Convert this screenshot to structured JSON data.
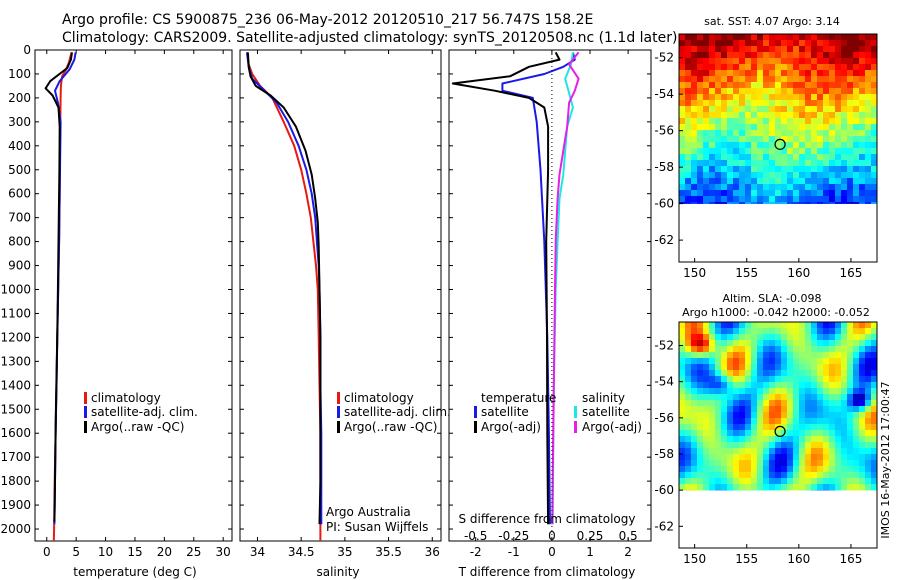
{
  "header": {
    "line1": "Argo profile: CS 5900875_236 06-May-2012 20120510_217 56.747S 158.2E",
    "line2": "Climatology: CARS2009. Satellite-adjusted climatology: synTS_20120508.nc (1.1d later)"
  },
  "colors": {
    "red": "#e8190f",
    "blue": "#1a1ae6",
    "black": "#000000",
    "cyan": "#1ee6e6",
    "magenta": "#e61ee6"
  },
  "depth_ticks": [
    "0",
    "100",
    "200",
    "300",
    "400",
    "500",
    "600",
    "700",
    "800",
    "900",
    "1000",
    "1100",
    "1200",
    "1300",
    "1400",
    "1500",
    "1600",
    "1700",
    "1800",
    "1900",
    "2000"
  ],
  "panel1": {
    "xlabel": "temperature (deg C)",
    "xticks": [
      "0",
      "5",
      "10",
      "15",
      "20",
      "25",
      "30"
    ],
    "legend": [
      "climatology",
      "satellite-adj. clim.",
      "Argo(..raw -QC)"
    ]
  },
  "panel2": {
    "xlabel": "salinity",
    "xticks": [
      "34",
      "34.5",
      "35",
      "35.5",
      "36"
    ],
    "legend": [
      "climatology",
      "satellite-adj. clim.",
      "Argo(..raw -QC)"
    ],
    "note1": "Argo Australia",
    "note2": "PI: Susan Wijffels"
  },
  "panel3": {
    "xlabel": "T difference from climatology",
    "toplabel": "S difference from climatology",
    "xticks_bottom": [
      "-2",
      "-1",
      "0",
      "1",
      "2"
    ],
    "xticks_top": [
      "-0.5",
      "-0.25",
      "0",
      "0.25",
      "0.5"
    ],
    "legend_left_title": "temperature",
    "legend_left": [
      "satellite",
      "Argo(-adj)"
    ],
    "legend_right_title": "salinity",
    "legend_right": [
      "satellite",
      "Argo(-adj)"
    ]
  },
  "map1": {
    "title": "sat. SST: 4.07 Argo: 3.14",
    "yticks": [
      "-52",
      "-54",
      "-56",
      "-58",
      "-60",
      "-62"
    ],
    "xticks": [
      "150",
      "155",
      "160",
      "165"
    ]
  },
  "map2": {
    "title1": "Altim. SLA: -0.098",
    "title2": "Argo h1000: -0.042 h2000: -0.052",
    "yticks": [
      "-52",
      "-54",
      "-56",
      "-58",
      "-60",
      "-62"
    ],
    "xticks": [
      "150",
      "155",
      "160",
      "165"
    ],
    "stamp": "IMOS 16-May-2012 17:00:47"
  },
  "chart_data": [
    {
      "type": "line",
      "title": "",
      "xlabel": "temperature (deg C)",
      "ylabel": "",
      "xlim": [
        -2,
        31.5
      ],
      "ylim": [
        2050,
        0
      ],
      "series": [
        {
          "name": "climatology",
          "color": "#e8190f",
          "points": [
            [
              4.2,
              10
            ],
            [
              3.8,
              50
            ],
            [
              3.3,
              80
            ],
            [
              2.6,
              110
            ],
            [
              2.4,
              150
            ],
            [
              2.35,
              200
            ],
            [
              2.3,
              300
            ],
            [
              2.25,
              400
            ],
            [
              2.2,
              600
            ],
            [
              2.1,
              800
            ],
            [
              1.95,
              1000
            ],
            [
              1.8,
              1200
            ],
            [
              1.65,
              1400
            ],
            [
              1.5,
              1600
            ],
            [
              1.35,
              1800
            ],
            [
              1.25,
              2000
            ],
            [
              1.2,
              2050
            ]
          ]
        },
        {
          "name": "satellite-adj. clim.",
          "color": "#1a1ae6",
          "points": [
            [
              4.9,
              10
            ],
            [
              4.7,
              40
            ],
            [
              3.9,
              80
            ],
            [
              2.2,
              130
            ],
            [
              1.4,
              170
            ],
            [
              1.9,
              220
            ],
            [
              2.35,
              300
            ],
            [
              2.3,
              400
            ],
            [
              2.2,
              600
            ],
            [
              2.1,
              800
            ],
            [
              1.95,
              1000
            ],
            [
              1.8,
              1200
            ],
            [
              1.65,
              1400
            ],
            [
              1.5,
              1600
            ],
            [
              1.4,
              1800
            ],
            [
              1.3,
              1980
            ]
          ]
        },
        {
          "name": "Argo(..raw -QC)",
          "color": "#000000",
          "points": [
            [
              4.3,
              10
            ],
            [
              4.1,
              40
            ],
            [
              3.5,
              75
            ],
            [
              0.6,
              130
            ],
            [
              -0.2,
              160
            ],
            [
              1.0,
              190
            ],
            [
              2.0,
              240
            ],
            [
              2.2,
              320
            ],
            [
              2.15,
              500
            ],
            [
              2.05,
              700
            ],
            [
              1.95,
              900
            ],
            [
              1.85,
              1100
            ],
            [
              1.7,
              1300
            ],
            [
              1.55,
              1500
            ],
            [
              1.45,
              1700
            ],
            [
              1.35,
              1900
            ],
            [
              1.3,
              1970
            ]
          ]
        }
      ]
    },
    {
      "type": "line",
      "title": "",
      "xlabel": "salinity",
      "ylabel": "",
      "xlim": [
        33.8,
        36.1
      ],
      "ylim": [
        2050,
        0
      ],
      "series": [
        {
          "name": "climatology",
          "color": "#e8190f",
          "points": [
            [
              33.88,
              10
            ],
            [
              33.9,
              60
            ],
            [
              33.94,
              100
            ],
            [
              34.03,
              150
            ],
            [
              34.17,
              200
            ],
            [
              34.3,
              300
            ],
            [
              34.42,
              400
            ],
            [
              34.5,
              500
            ],
            [
              34.56,
              600
            ],
            [
              34.61,
              700
            ],
            [
              34.64,
              800
            ],
            [
              34.67,
              900
            ],
            [
              34.69,
              1000
            ],
            [
              34.7,
              1200
            ],
            [
              34.71,
              1400
            ],
            [
              34.72,
              1600
            ],
            [
              34.72,
              1800
            ],
            [
              34.72,
              2050
            ]
          ]
        },
        {
          "name": "satellite-adj. clim.",
          "color": "#1a1ae6",
          "points": [
            [
              33.88,
              10
            ],
            [
              33.9,
              70
            ],
            [
              33.94,
              120
            ],
            [
              34.08,
              170
            ],
            [
              34.22,
              220
            ],
            [
              34.35,
              300
            ],
            [
              34.47,
              400
            ],
            [
              34.56,
              500
            ],
            [
              34.62,
              600
            ],
            [
              34.66,
              700
            ],
            [
              34.68,
              800
            ],
            [
              34.7,
              900
            ],
            [
              34.71,
              1000
            ],
            [
              34.72,
              1200
            ],
            [
              34.72,
              1400
            ],
            [
              34.73,
              1600
            ],
            [
              34.73,
              1800
            ],
            [
              34.73,
              1980
            ]
          ]
        },
        {
          "name": "Argo(..raw -QC)",
          "color": "#000000",
          "points": [
            [
              33.89,
              10
            ],
            [
              33.9,
              70
            ],
            [
              33.92,
              110
            ],
            [
              33.98,
              150
            ],
            [
              34.15,
              190
            ],
            [
              34.3,
              240
            ],
            [
              34.44,
              320
            ],
            [
              34.55,
              420
            ],
            [
              34.62,
              520
            ],
            [
              34.66,
              620
            ],
            [
              34.69,
              720
            ],
            [
              34.7,
              820
            ],
            [
              34.71,
              1000
            ],
            [
              34.72,
              1200
            ],
            [
              34.72,
              1400
            ],
            [
              34.72,
              1600
            ],
            [
              34.72,
              1800
            ],
            [
              34.71,
              1980
            ]
          ]
        }
      ]
    },
    {
      "type": "line",
      "title": "",
      "xlabel": "T difference from climatology",
      "ylabel": "",
      "xlim": [
        -2.7,
        2.6
      ],
      "ylim": [
        2050,
        0
      ],
      "series": [
        {
          "name": "temperature satellite",
          "color": "#1a1ae6",
          "points": [
            [
              0.55,
              10
            ],
            [
              0.6,
              40
            ],
            [
              0.3,
              70
            ],
            [
              -0.2,
              100
            ],
            [
              -1.3,
              140
            ],
            [
              -1.3,
              170
            ],
            [
              -0.5,
              200
            ],
            [
              -0.4,
              300
            ],
            [
              -0.3,
              500
            ],
            [
              -0.2,
              800
            ],
            [
              -0.12,
              1200
            ],
            [
              -0.08,
              1600
            ],
            [
              -0.05,
              1980
            ]
          ]
        },
        {
          "name": "temperature Argo(-adj)",
          "color": "#000000",
          "points": [
            [
              0.1,
              10
            ],
            [
              0.2,
              40
            ],
            [
              -0.6,
              70
            ],
            [
              -1.1,
              110
            ],
            [
              -2.6,
              140
            ],
            [
              -1.5,
              170
            ],
            [
              -0.6,
              200
            ],
            [
              -0.2,
              240
            ],
            [
              -0.1,
              320
            ],
            [
              -0.1,
              500
            ],
            [
              -0.15,
              800
            ],
            [
              -0.13,
              1200
            ],
            [
              -0.12,
              1600
            ],
            [
              -0.1,
              1980
            ]
          ]
        },
        {
          "name": "salinity satellite",
          "color": "#1ee6e6",
          "points": [
            [
              0.55,
              10
            ],
            [
              0.5,
              60
            ],
            [
              0.35,
              120
            ],
            [
              0.45,
              180
            ],
            [
              0.55,
              240
            ],
            [
              0.4,
              320
            ],
            [
              0.35,
              420
            ],
            [
              0.3,
              520
            ],
            [
              0.2,
              620
            ],
            [
              0.15,
              800
            ],
            [
              0.1,
              1000
            ],
            [
              0.05,
              1400
            ],
            [
              0.03,
              1800
            ],
            [
              0.02,
              1980
            ]
          ]
        },
        {
          "name": "salinity Argo(-adj)",
          "color": "#e61ee6",
          "points": [
            [
              0.7,
              10
            ],
            [
              0.45,
              60
            ],
            [
              0.7,
              120
            ],
            [
              0.6,
              170
            ],
            [
              0.45,
              220
            ],
            [
              0.4,
              320
            ],
            [
              0.3,
              420
            ],
            [
              0.2,
              520
            ],
            [
              0.15,
              620
            ],
            [
              0.1,
              800
            ],
            [
              0.08,
              1000
            ],
            [
              0.05,
              1400
            ],
            [
              0.02,
              1800
            ],
            [
              0.01,
              1980
            ]
          ]
        }
      ]
    },
    {
      "type": "heatmap",
      "title": "sat. SST: 4.07 Argo: 3.14",
      "xlabel": "",
      "ylabel": "",
      "xlim": [
        148.5,
        167.5
      ],
      "ylim": [
        -63.2,
        -50.7
      ],
      "colormap": "jet",
      "argo_position": [
        158.2,
        -56.75
      ]
    },
    {
      "type": "heatmap",
      "title": "Altim. SLA: -0.098 / Argo h1000: -0.042 h2000: -0.052",
      "xlabel": "",
      "ylabel": "",
      "xlim": [
        148.5,
        167.5
      ],
      "ylim": [
        -63.2,
        -50.7
      ],
      "colormap": "jet",
      "argo_position": [
        158.2,
        -56.75
      ]
    }
  ]
}
